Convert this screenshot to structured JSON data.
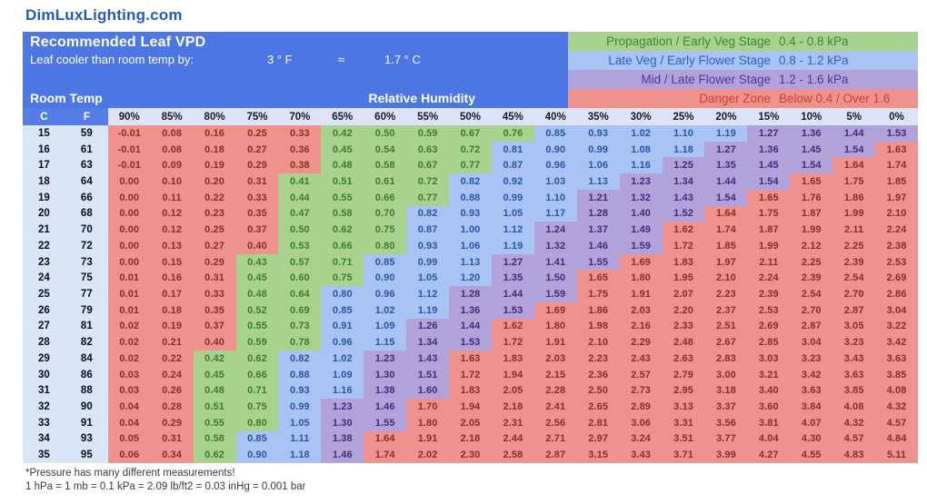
{
  "site": "DimLuxLighting.com",
  "panel": {
    "title": "Recommended Leaf VPD",
    "leaf_cooler_label": "Leaf cooler than room temp by:",
    "leaf_cooler_f": "3 ° F",
    "approx": "≈",
    "leaf_cooler_c": "1.7 ° C",
    "room_temp_label": "Room Temp",
    "rh_label": "Relative Humidity"
  },
  "legend": [
    {
      "label": "Propagation / Early Veg Stage",
      "range": "0.4 - 0.8 kPa",
      "zone": "G"
    },
    {
      "label": "Late Veg / Early Flower Stage",
      "range": "0.8 - 1.2 kPa",
      "zone": "B"
    },
    {
      "label": "Mid / Late Flower Stage",
      "range": "1.2 - 1.6 kPa",
      "zone": "P"
    },
    {
      "label": "Danger Zone",
      "range": "Below 0.4 / Over 1.6",
      "zone": "R"
    }
  ],
  "footer": {
    "line1": "*Pressure has many different measurements!",
    "line2": "1 hPa = 1 mb = 0.1 kPa = 2.09 lb/ft2 = 0.03 inHg = 0.001 bar"
  },
  "colors": {
    "site-tx": "#2756c6",
    "panel-bg": "#4c76e3",
    "cfhead-bg": "#567ce5",
    "pcthead-bg": "#dde3f9",
    "pcthead-tx": "#17172b",
    "temp-bg": "#d8e6f8",
    "zR-bg": "#ef918c",
    "zR-tx": "#872e2d",
    "zR-leg": "#c8423a",
    "zG-bg": "#a8d28e",
    "zG-tx": "#3b7c31",
    "zG-leg": "#3b8531",
    "zB-bg": "#a8c3f4",
    "zB-tx": "#2c53ab",
    "zB-leg": "#2d5dd3",
    "zP-bg": "#b1a2d9",
    "zP-tx": "#46287e",
    "zP-leg": "#56329b"
  },
  "chart_data": {
    "type": "heatmap",
    "title": "Recommended Leaf VPD",
    "units": "kPa",
    "x_axis_label": "Relative Humidity",
    "y_axis_label": "Room Temp",
    "leaf_offset": "Leaf cooler than room temp by 3 °F ≈ 1.7 °C",
    "temp_headers": [
      "C",
      "F"
    ],
    "humidity_labels": [
      "90%",
      "85%",
      "80%",
      "75%",
      "70%",
      "65%",
      "60%",
      "55%",
      "50%",
      "45%",
      "40%",
      "35%",
      "30%",
      "25%",
      "20%",
      "15%",
      "10%",
      "5%",
      "0%"
    ],
    "zone_key": {
      "G": "Propagation / Early Veg Stage 0.4 - 0.8 kPa",
      "B": "Late Veg / Early Flower Stage 0.8 - 1.2 kPa",
      "P": "Mid / Late Flower Stage 1.2 - 1.6 kPa",
      "R": "Danger Zone Below 0.4 / Over 1.6"
    },
    "rows": [
      {
        "c": "15",
        "f": "59",
        "values": [
          "-0.01",
          "0.08",
          "0.16",
          "0.25",
          "0.33",
          "0.42",
          "0.50",
          "0.59",
          "0.67",
          "0.76",
          "0.85",
          "0.93",
          "1.02",
          "1.10",
          "1.19",
          "1.27",
          "1.36",
          "1.44",
          "1.53"
        ],
        "zones": "RRRRRGGGGGBBBBBPPPP"
      },
      {
        "c": "16",
        "f": "61",
        "values": [
          "-0.01",
          "0.08",
          "0.18",
          "0.27",
          "0.36",
          "0.45",
          "0.54",
          "0.63",
          "0.72",
          "0.81",
          "0.90",
          "0.99",
          "1.08",
          "1.18",
          "1.27",
          "1.36",
          "1.45",
          "1.54",
          "1.63"
        ],
        "zones": "RRRRRGGGGBBBBBPPPPR"
      },
      {
        "c": "17",
        "f": "63",
        "values": [
          "-0.01",
          "0.09",
          "0.19",
          "0.29",
          "0.38",
          "0.48",
          "0.58",
          "0.67",
          "0.77",
          "0.87",
          "0.96",
          "1.06",
          "1.16",
          "1.25",
          "1.35",
          "1.45",
          "1.54",
          "1.64",
          "1.74"
        ],
        "zones": "RRRRRGGGGBBBBPPPPRR"
      },
      {
        "c": "18",
        "f": "64",
        "values": [
          "0.00",
          "0.10",
          "0.20",
          "0.31",
          "0.41",
          "0.51",
          "0.61",
          "0.72",
          "0.82",
          "0.92",
          "1.03",
          "1.13",
          "1.23",
          "1.34",
          "1.44",
          "1.54",
          "1.65",
          "1.75",
          "1.85"
        ],
        "zones": "RRRRGGGGBBBBPPPPRRR"
      },
      {
        "c": "19",
        "f": "66",
        "values": [
          "0.00",
          "0.11",
          "0.22",
          "0.33",
          "0.44",
          "0.55",
          "0.66",
          "0.77",
          "0.88",
          "0.99",
          "1.10",
          "1.21",
          "1.32",
          "1.43",
          "1.54",
          "1.65",
          "1.76",
          "1.86",
          "1.97"
        ],
        "zones": "RRRRGGGGBBBPPPPRRRR"
      },
      {
        "c": "20",
        "f": "68",
        "values": [
          "0.00",
          "0.12",
          "0.23",
          "0.35",
          "0.47",
          "0.58",
          "0.70",
          "0.82",
          "0.93",
          "1.05",
          "1.17",
          "1.28",
          "1.40",
          "1.52",
          "1.64",
          "1.75",
          "1.87",
          "1.99",
          "2.10"
        ],
        "zones": "RRRRGGGBBBBPPPRRRRR"
      },
      {
        "c": "21",
        "f": "70",
        "values": [
          "0.00",
          "0.12",
          "0.25",
          "0.37",
          "0.50",
          "0.62",
          "0.75",
          "0.87",
          "1.00",
          "1.12",
          "1.24",
          "1.37",
          "1.49",
          "1.62",
          "1.74",
          "1.87",
          "1.99",
          "2.11",
          "2.24"
        ],
        "zones": "RRRRGGGBBBPPPRRRRRR"
      },
      {
        "c": "22",
        "f": "72",
        "values": [
          "0.00",
          "0.13",
          "0.27",
          "0.40",
          "0.53",
          "0.66",
          "0.80",
          "0.93",
          "1.06",
          "1.19",
          "1.32",
          "1.46",
          "1.59",
          "1.72",
          "1.85",
          "1.99",
          "2.12",
          "2.25",
          "2.38"
        ],
        "zones": "RRRRGGGBBBPPPRRRRRR"
      },
      {
        "c": "23",
        "f": "73",
        "values": [
          "0.00",
          "0.15",
          "0.29",
          "0.43",
          "0.57",
          "0.71",
          "0.85",
          "0.99",
          "1.13",
          "1.27",
          "1.41",
          "1.55",
          "1.69",
          "1.83",
          "1.97",
          "2.11",
          "2.25",
          "2.39",
          "2.53"
        ],
        "zones": "RRRGGGBBBPPPRRRRRRR"
      },
      {
        "c": "24",
        "f": "75",
        "values": [
          "0.01",
          "0.16",
          "0.31",
          "0.45",
          "0.60",
          "0.75",
          "0.90",
          "1.05",
          "1.20",
          "1.35",
          "1.50",
          "1.65",
          "1.80",
          "1.95",
          "2.10",
          "2.24",
          "2.39",
          "2.54",
          "2.69"
        ],
        "zones": "RRRGGGBBBPPRRRRRRRR"
      },
      {
        "c": "25",
        "f": "77",
        "values": [
          "0.01",
          "0.17",
          "0.33",
          "0.48",
          "0.64",
          "0.80",
          "0.96",
          "1.12",
          "1.28",
          "1.44",
          "1.59",
          "1.75",
          "1.91",
          "2.07",
          "2.23",
          "2.39",
          "2.54",
          "2.70",
          "2.86"
        ],
        "zones": "RRRGGBBBPPPRRRRRRRR"
      },
      {
        "c": "26",
        "f": "79",
        "values": [
          "0.01",
          "0.18",
          "0.35",
          "0.52",
          "0.69",
          "0.85",
          "1.02",
          "1.19",
          "1.36",
          "1.53",
          "1.69",
          "1.86",
          "2.03",
          "2.20",
          "2.37",
          "2.53",
          "2.70",
          "2.87",
          "3.04"
        ],
        "zones": "RRRGGBBBPPRRRRRRRRR"
      },
      {
        "c": "27",
        "f": "81",
        "values": [
          "0.02",
          "0.19",
          "0.37",
          "0.55",
          "0.73",
          "0.91",
          "1.09",
          "1.26",
          "1.44",
          "1.62",
          "1.80",
          "1.98",
          "2.16",
          "2.33",
          "2.51",
          "2.69",
          "2.87",
          "3.05",
          "3.22"
        ],
        "zones": "RRRGGBBPPRRRRRRRRRR"
      },
      {
        "c": "28",
        "f": "82",
        "values": [
          "0.02",
          "0.21",
          "0.40",
          "0.59",
          "0.78",
          "0.96",
          "1.15",
          "1.34",
          "1.53",
          "1.72",
          "1.91",
          "2.10",
          "2.29",
          "2.48",
          "2.67",
          "2.85",
          "3.04",
          "3.23",
          "3.42"
        ],
        "zones": "RRRGGBBPPRRRRRRRRRR"
      },
      {
        "c": "29",
        "f": "84",
        "values": [
          "0.02",
          "0.22",
          "0.42",
          "0.62",
          "0.82",
          "1.02",
          "1.23",
          "1.43",
          "1.63",
          "1.83",
          "2.03",
          "2.23",
          "2.43",
          "2.63",
          "2.83",
          "3.03",
          "3.23",
          "3.43",
          "3.63"
        ],
        "zones": "RRGGBBPPRRRRRRRRRRR"
      },
      {
        "c": "30",
        "f": "86",
        "values": [
          "0.03",
          "0.24",
          "0.45",
          "0.66",
          "0.88",
          "1.09",
          "1.30",
          "1.51",
          "1.72",
          "1.94",
          "2.15",
          "2.36",
          "2.57",
          "2.79",
          "3.00",
          "3.21",
          "3.42",
          "3.63",
          "3.85"
        ],
        "zones": "RRGGBBPPRRRRRRRRRRR"
      },
      {
        "c": "31",
        "f": "88",
        "values": [
          "0.03",
          "0.26",
          "0.48",
          "0.71",
          "0.93",
          "1.16",
          "1.38",
          "1.60",
          "1.83",
          "2.05",
          "2.28",
          "2.50",
          "2.73",
          "2.95",
          "3.18",
          "3.40",
          "3.63",
          "3.85",
          "4.08"
        ],
        "zones": "RRGGBBPPRRRRRRRRRRR"
      },
      {
        "c": "32",
        "f": "90",
        "values": [
          "0.04",
          "0.28",
          "0.51",
          "0.75",
          "0.99",
          "1.23",
          "1.46",
          "1.70",
          "1.94",
          "2.18",
          "2.41",
          "2.65",
          "2.89",
          "3.13",
          "3.37",
          "3.60",
          "3.84",
          "4.08",
          "4.32"
        ],
        "zones": "RRGGBPPRRRRRRRRRRRR"
      },
      {
        "c": "33",
        "f": "91",
        "values": [
          "0.04",
          "0.29",
          "0.55",
          "0.80",
          "1.05",
          "1.30",
          "1.55",
          "1.80",
          "2.05",
          "2.31",
          "2.56",
          "2.81",
          "3.06",
          "3.31",
          "3.56",
          "3.81",
          "4.07",
          "4.32",
          "4.57"
        ],
        "zones": "RRGGBPPRRRRRRRRRRRR"
      },
      {
        "c": "34",
        "f": "93",
        "values": [
          "0.05",
          "0.31",
          "0.58",
          "0.85",
          "1.11",
          "1.38",
          "1.64",
          "1.91",
          "2.18",
          "2.44",
          "2.71",
          "2.97",
          "3.24",
          "3.51",
          "3.77",
          "4.04",
          "4.30",
          "4.57",
          "4.84"
        ],
        "zones": "RRGBBPRRRRRRRRRRRRR"
      },
      {
        "c": "35",
        "f": "95",
        "values": [
          "0.06",
          "0.34",
          "0.62",
          "0.90",
          "1.18",
          "1.46",
          "1.74",
          "2.02",
          "2.30",
          "2.58",
          "2.87",
          "3.15",
          "3.43",
          "3.71",
          "3.99",
          "4.27",
          "4.55",
          "4.83",
          "5.11"
        ],
        "zones": "RRGBBPRRRRRRRRRRRRR"
      }
    ]
  }
}
